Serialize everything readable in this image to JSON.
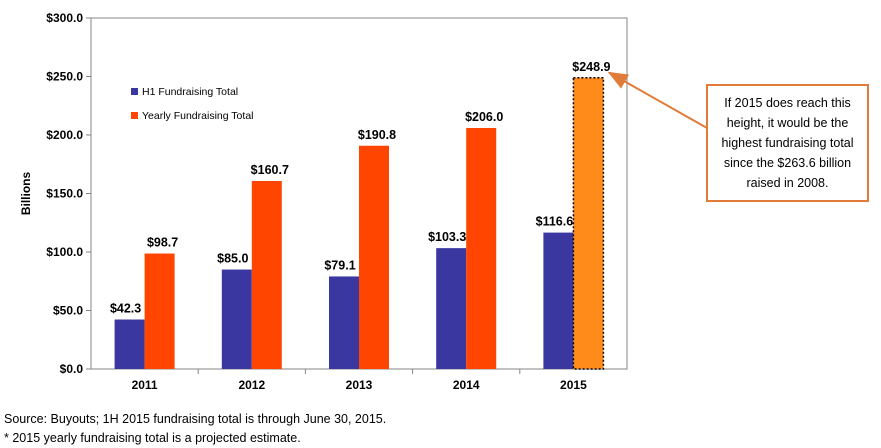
{
  "chart_data": {
    "type": "bar",
    "title": "",
    "xlabel": "",
    "ylabel": "Billions",
    "ylim": [
      0,
      300
    ],
    "yticks": [
      "$0.0",
      "$50.0",
      "$100.0",
      "$150.0",
      "$200.0",
      "$250.0",
      "$300.0"
    ],
    "categories": [
      "2011",
      "2012",
      "2013",
      "2014",
      "2015"
    ],
    "series": [
      {
        "name": "H1 Fundraising Total",
        "color": "#3a37a0",
        "values": [
          42.3,
          85.0,
          79.1,
          103.3,
          116.6
        ],
        "labels": [
          "$42.3",
          "$85.0",
          "$79.1",
          "$103.3",
          "$116.6"
        ]
      },
      {
        "name": "Yearly Fundraising Total",
        "color": "#ff4500",
        "values": [
          98.7,
          160.7,
          190.8,
          206.0,
          248.9
        ],
        "labels": [
          "$98.7",
          "$160.7",
          "$190.8",
          "$206.0",
          "$248.9"
        ],
        "projected_color": "#ff8c1a"
      }
    ],
    "grid": false,
    "legend_position": "top-left"
  },
  "annotation": {
    "text_lines": [
      "If 2015 does reach this",
      "height, it would be the",
      "highest fundraising total",
      "since the $263.6 billion",
      "raised in 2008."
    ],
    "border_color": "#e07b39"
  },
  "footnotes": {
    "source": "Source: Buyouts; 1H 2015 fundraising total is through June 30, 2015.",
    "note": "* 2015 yearly fundraising total is a projected estimate."
  }
}
